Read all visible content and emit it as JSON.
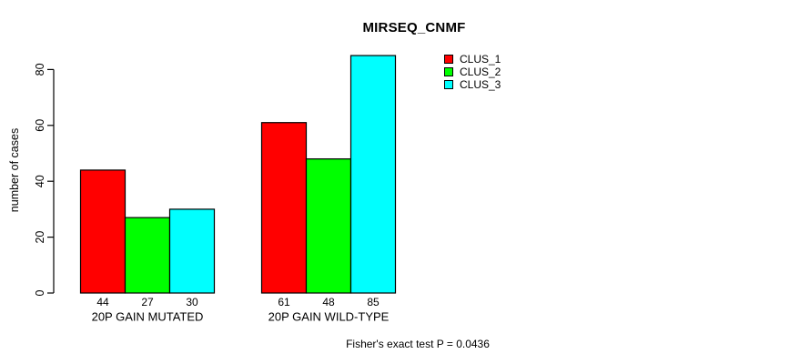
{
  "chart_data": {
    "type": "bar",
    "title": "MIRSEQ_CNMF",
    "ylabel": "number of cases",
    "xlabel": "",
    "categories": [
      "20P GAIN MUTATED",
      "20P GAIN WILD-TYPE"
    ],
    "series": [
      {
        "name": "CLUS_1",
        "color": "#FF0000",
        "values": [
          44,
          61
        ]
      },
      {
        "name": "CLUS_2",
        "color": "#00FF00",
        "values": [
          27,
          48
        ]
      },
      {
        "name": "CLUS_3",
        "color": "#00FFFF",
        "values": [
          30,
          85
        ]
      }
    ],
    "yticks": [
      0,
      20,
      40,
      60,
      80
    ],
    "ylim": [
      0,
      85
    ],
    "grid": false,
    "bar_value_labels": true,
    "legend_position": "top-right",
    "annotation": "Fisher's exact test P = 0.0436",
    "colors": {
      "axis": "#000000",
      "text": "#000000",
      "background": "#FFFFFF"
    }
  }
}
